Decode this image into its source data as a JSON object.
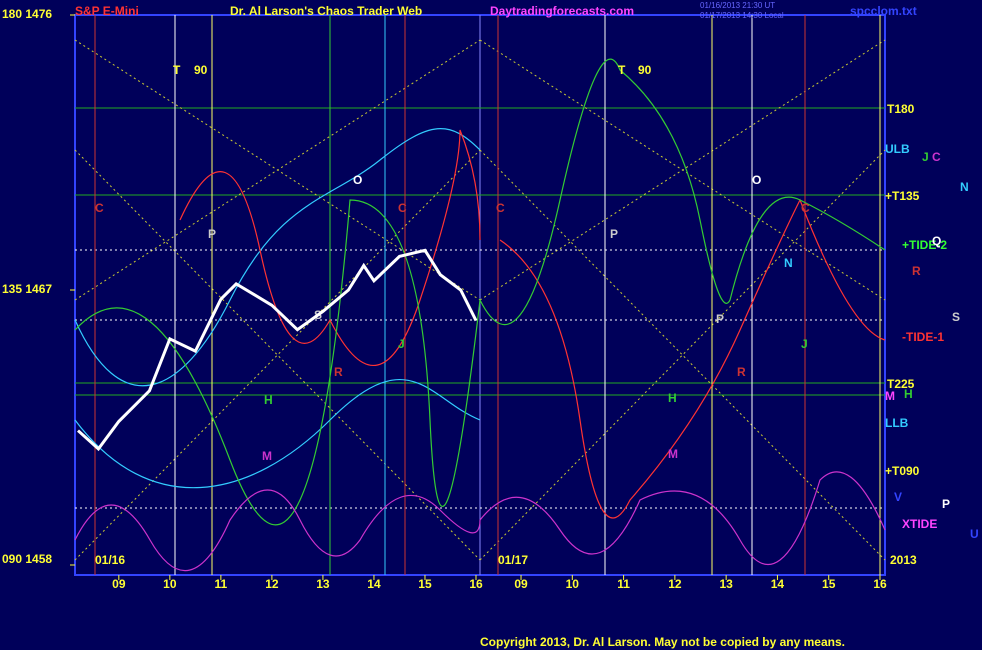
{
  "chart_data": {
    "type": "line",
    "title": "S&P E-Mini",
    "subtitle": "Dr. Al Larson's Chaos Trader Web",
    "site": "Daytradingforecasts.com",
    "file": "spcclom.txt",
    "stamps": [
      "01/16/2013 21:30 UT",
      "01/17/2013 14:30 Local"
    ],
    "copyright": "Copyright 2013, Dr. Al Larson. May not be copied by any means.",
    "dates": [
      "01/16",
      "01/17",
      "2013"
    ],
    "x": [
      8.2,
      8.6,
      9,
      9.6,
      10,
      10.5,
      11,
      11.3,
      12,
      12.5,
      13,
      13.5,
      13.8,
      14,
      14.5,
      15,
      15.3,
      15.7,
      16
    ],
    "series": [
      {
        "name": "S&P E-Mini",
        "color": "#ffffff",
        "values": [
          1462.4,
          1461.8,
          1462.7,
          1463.7,
          1465.4,
          1465.0,
          1466.7,
          1467.2,
          1466.5,
          1465.7,
          1466.3,
          1467.0,
          1467.8,
          1467.3,
          1468.1,
          1468.3,
          1467.5,
          1467.0,
          1466.0
        ]
      }
    ],
    "xlim": [
      8.2,
      16
    ],
    "xticks": [
      {
        "value": 9,
        "label": "09"
      },
      10,
      11,
      12,
      13,
      14,
      15,
      16
    ],
    "x2lim": [
      8.2,
      16
    ],
    "x2ticks": [
      {
        "value": 9,
        "label": "09"
      },
      10,
      11,
      12,
      13,
      14,
      15,
      16
    ],
    "ylim": [
      1458,
      1476
    ],
    "yticks": [
      {
        "value": 1458,
        "label": "090 1458"
      },
      {
        "value": 1467,
        "label": "135 1467"
      },
      {
        "value": 1476,
        "label": "180 1476"
      }
    ],
    "right_labels": [
      "T180",
      "ULB",
      "+T135",
      "+TIDE-2",
      "-TIDE-1",
      "T225",
      "LLB",
      "+T090",
      "XTIDE"
    ],
    "planets": [
      "J",
      "C",
      "N",
      "Q",
      "R",
      "S",
      "M",
      "H",
      "V",
      "P",
      "U"
    ],
    "annotations": [
      "T",
      "90",
      "T",
      "90",
      "C",
      "P",
      "O",
      "C",
      "C",
      "P",
      "O",
      "C",
      "N",
      "H",
      "M",
      "H",
      "M",
      "J",
      "J",
      "R",
      "P",
      "R",
      "S"
    ]
  }
}
